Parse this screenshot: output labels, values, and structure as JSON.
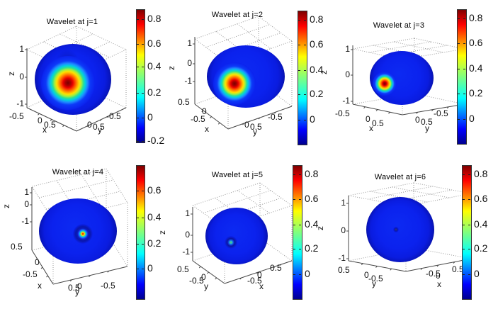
{
  "figure": {
    "background": "#ffffff",
    "colormap": "jet",
    "colors": {
      "sphere_blue": "#0b22ee",
      "sphere_rim": "#0712a8",
      "grid_gray": "#9a9a9a",
      "axis_gray": "#444444",
      "jet_top": "#7f0000",
      "jet_bottom": "#00008f",
      "hotspot_core_red": "#7a0000"
    }
  },
  "chart_data": {
    "type": "heatmap",
    "description": "Six 3D sphere surface plots (2x3 grid) of spherical wavelets at scales j=1..6, jet colormap. The wavelet hotspot shrinks as j increases until the sphere is uniformly blue.",
    "axis_ranges": {
      "x": [
        -0.5,
        0.5
      ],
      "y": [
        -0.5,
        0.5
      ],
      "z": [
        -1,
        1
      ]
    },
    "subplots": [
      {
        "scale_j": 1,
        "title": "Wavelet at j=1",
        "z_ticks": [
          "1",
          "0",
          "-1"
        ],
        "z_label": "z",
        "left_ticks": [
          "-0.5",
          "0",
          "0.5"
        ],
        "left_axis_label": "x",
        "right_ticks": [
          "0",
          "0.5",
          "-0.5"
        ],
        "right_axis_label": "y",
        "colorbar_ticks": [
          "0.8",
          "0.6",
          "0.4",
          "0.2",
          "0",
          "-0.2"
        ],
        "value_range": [
          -0.2,
          0.9
        ],
        "hotspot": "broad red-core bump left of sphere center"
      },
      {
        "scale_j": 2,
        "title": "Wavelet at j=2",
        "z_ticks": [
          "1",
          "0",
          "-1"
        ],
        "z_label": "z",
        "left_ticks": [
          "0.5",
          "0",
          "-0.5"
        ],
        "left_axis_label": "x",
        "right_ticks": [
          "0",
          "0.5",
          "-0.5"
        ],
        "right_axis_label": "y",
        "colorbar_ticks": [
          "0.8",
          "0.6",
          "0.4",
          "0.2",
          "0"
        ],
        "value_range": [
          -0.1,
          0.9
        ],
        "hotspot": "medium spot lower-left of center"
      },
      {
        "scale_j": 3,
        "title": "Wavelet at j=3",
        "z_ticks": [
          "1",
          "0",
          "-1"
        ],
        "z_label": "z",
        "left_ticks": [
          "-0.5",
          "0",
          "0.5"
        ],
        "left_axis_label": "x",
        "right_ticks": [
          "0",
          "0.5",
          "-0.5"
        ],
        "right_axis_label": "y",
        "colorbar_ticks": [
          "0.8",
          "0.6",
          "0.4",
          "0.2",
          "0"
        ],
        "value_range": [
          -0.1,
          0.9
        ],
        "hotspot": "small spot left of center"
      },
      {
        "scale_j": 4,
        "title": "Wavelet at j=4",
        "z_ticks": [
          "1",
          "0",
          "-1"
        ],
        "z_label": "z",
        "left_ticks": [
          "0.5",
          "0",
          "-0.5"
        ],
        "left_axis_label": "x",
        "right_ticks": [
          "0.5",
          "0",
          "-0.5"
        ],
        "right_axis_label": "y",
        "colorbar_ticks": [
          "0.6",
          "0.4",
          "0.2",
          "0"
        ],
        "value_range": [
          -0.1,
          0.7
        ],
        "hotspot": "tiny dot near center with dark ring"
      },
      {
        "scale_j": 5,
        "title": "Wavelet at j=5",
        "z_ticks": [
          "1",
          "0",
          "-1"
        ],
        "z_label": "z",
        "left_ticks": [
          "0.5",
          "0",
          "-0.5"
        ],
        "left_axis_label": "y",
        "right_ticks": [
          "0.5",
          "0",
          "-0.5"
        ],
        "right_axis_label": "x",
        "colorbar_ticks": [
          "0.8",
          "0.6",
          "0.4",
          "0.2",
          "0"
        ],
        "value_range": [
          -0.1,
          0.9
        ],
        "hotspot": "pinpoint dot slightly below center"
      },
      {
        "scale_j": 6,
        "title": "Wavelet at j=6",
        "z_ticks": [
          "1",
          "0",
          "-1"
        ],
        "z_label": "z",
        "left_ticks": [
          "0.5",
          "0",
          "-0.5"
        ],
        "left_axis_label": "y",
        "right_ticks": [
          "-0.5",
          "0",
          "0.5"
        ],
        "right_axis_label": "x",
        "colorbar_ticks": [
          "0.8",
          "0.6",
          "0.4",
          "0.2",
          "0"
        ],
        "value_range": [
          -0.1,
          0.9
        ],
        "hotspot": "nearly invisible pinpoint at center"
      }
    ]
  }
}
